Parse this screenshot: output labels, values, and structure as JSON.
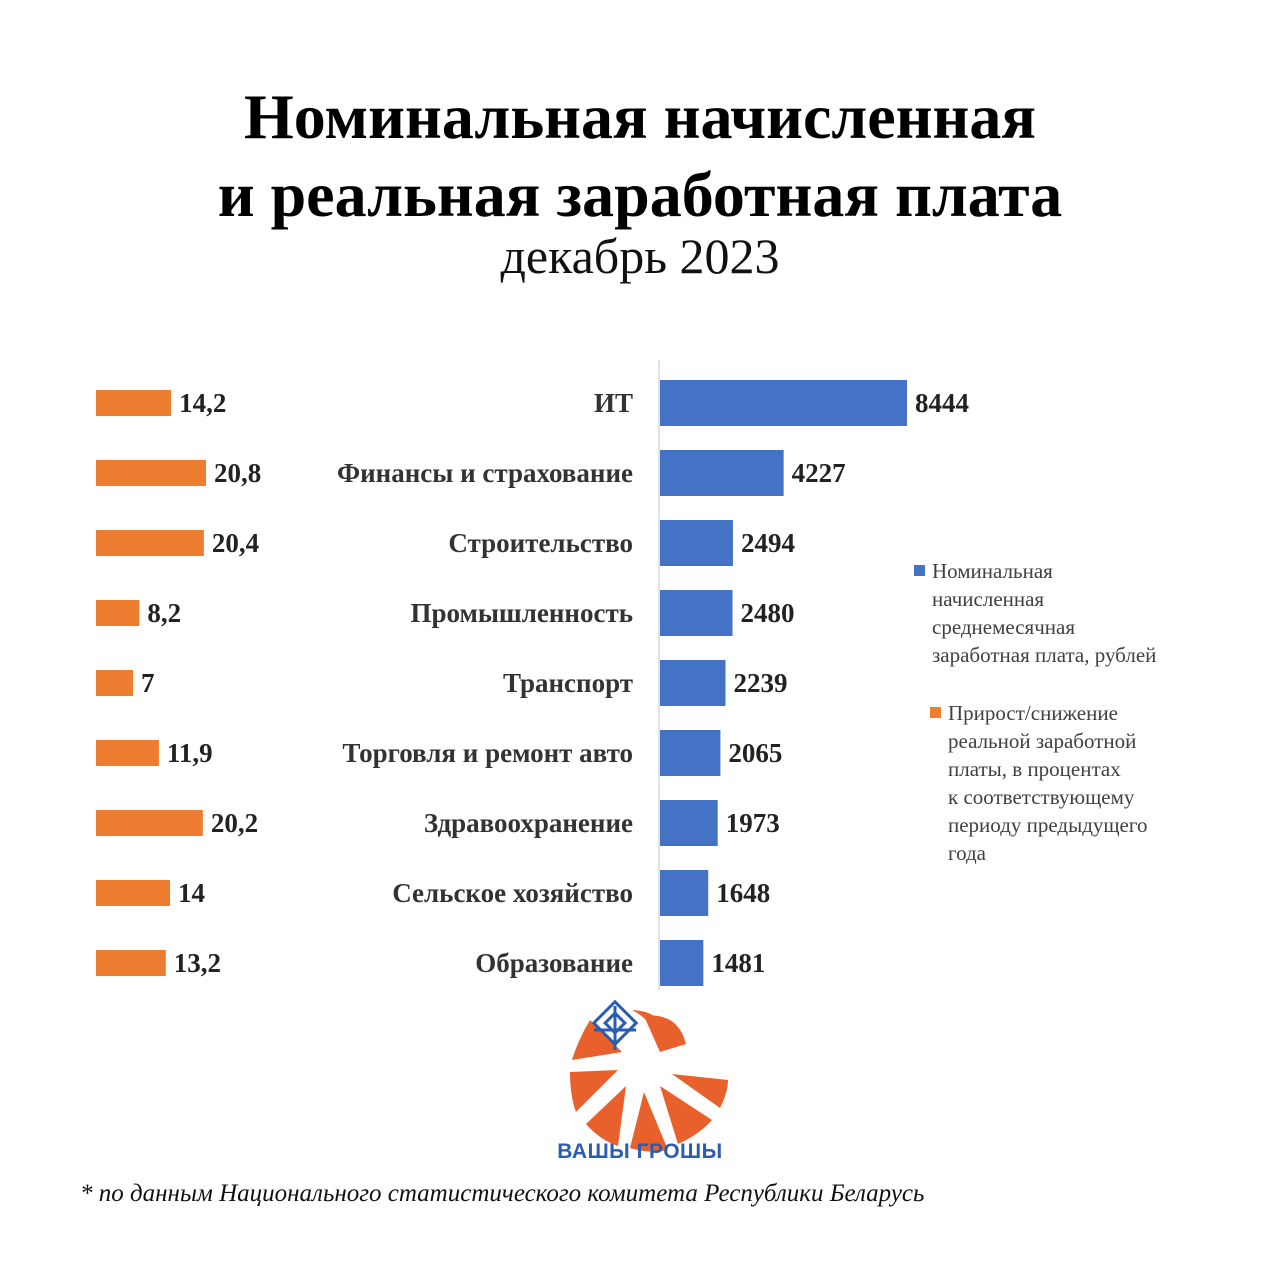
{
  "header": {
    "title_line1": "Номинальная начисленная",
    "title_line2": "и реальная заработная плата",
    "subtitle": "декабрь 2023"
  },
  "chart_data": {
    "type": "bar",
    "categories": [
      "ИТ",
      "Финансы и страхование",
      "Строительство",
      "Промышленность",
      "Транспорт",
      "Торговля и ремонт авто",
      "Здравоохранение",
      "Сельское хозяйство",
      "Образование"
    ],
    "series": [
      {
        "name": "Номинальная начисленная среднемесячная заработная плата, рублей",
        "values": [
          8444,
          4227,
          2494,
          2480,
          2239,
          2065,
          1973,
          1648,
          1481
        ],
        "labels": [
          "8444",
          "4227",
          "2494",
          "2480",
          "2239",
          "2065",
          "1973",
          "1648",
          "1481"
        ],
        "color": "#4472c4"
      },
      {
        "name": "Прирост/снижение реальной заработной платы, в процентах к соответствующему периоду предыдущего года",
        "values": [
          14.2,
          20.8,
          20.4,
          8.2,
          7,
          11.9,
          20.2,
          14,
          13.2
        ],
        "labels": [
          "14,2",
          "20,8",
          "20,4",
          "8,2",
          "7",
          "11,9",
          "20,2",
          "14",
          "13,2"
        ],
        "color": "#ed7d31"
      }
    ],
    "orientation": "horizontal",
    "legend_position": "right",
    "grid": false
  },
  "legend": {
    "nominal": [
      "Номинальная",
      "начисленная",
      "среднемесячная",
      "заработная плата, рублей"
    ],
    "real": [
      "Прирост/снижение",
      "реальной заработной",
      "платы, в процентах",
      "к соответствующему",
      "периоду предыдущего",
      "года"
    ]
  },
  "logo": {
    "brand": "ВАШЫ ГРОШЫ",
    "colors": {
      "petal": "#e8602c",
      "pattern": "#2a5db0"
    }
  },
  "footnote": "* по данным Национального статистического комитета Республики Беларусь"
}
